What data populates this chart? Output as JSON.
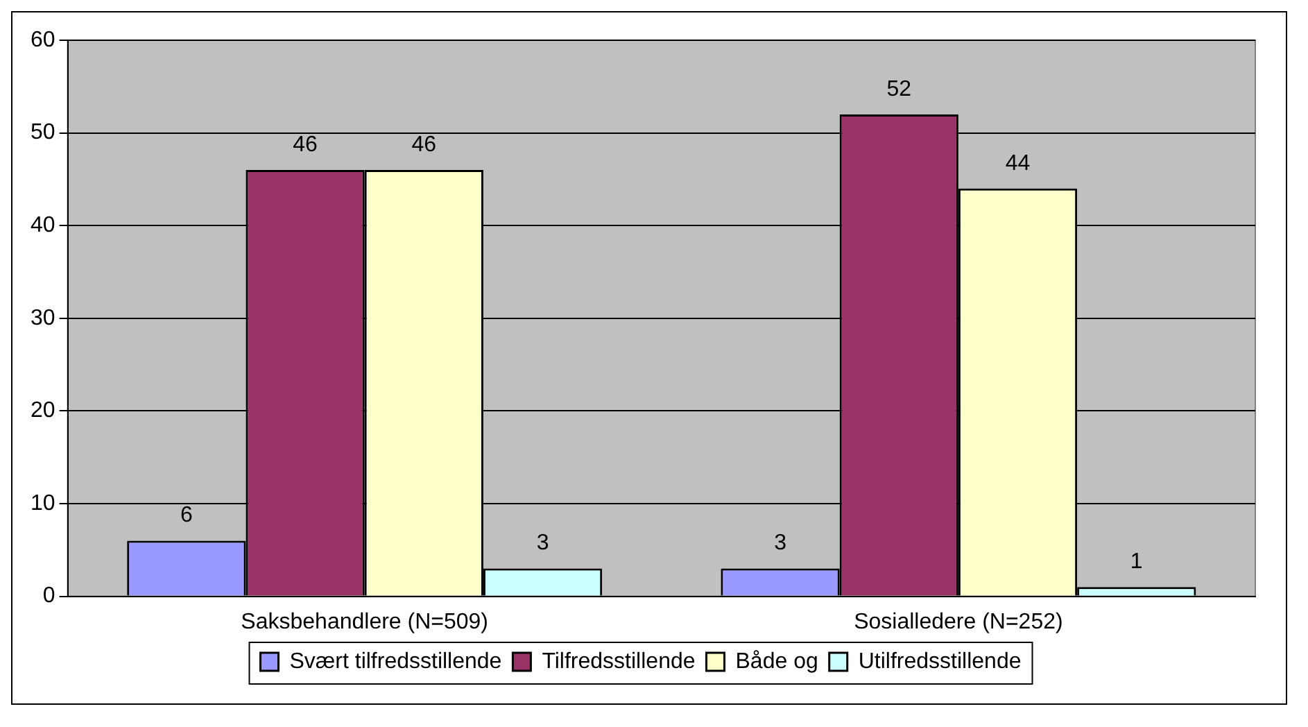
{
  "chart_data": {
    "type": "bar",
    "categories": [
      "Saksbehandlere (N=509)",
      "Sosialledere (N=252)"
    ],
    "series": [
      {
        "name": "Svært tilfredsstillende",
        "color": "#9999ff",
        "values": [
          6,
          3
        ]
      },
      {
        "name": "Tilfredsstillende",
        "color": "#993366",
        "values": [
          46,
          52
        ]
      },
      {
        "name": "Både og",
        "color": "#ffffcc",
        "values": [
          46,
          44
        ]
      },
      {
        "name": "Utilfredsstillende",
        "color": "#ccffff",
        "values": [
          3,
          1
        ]
      }
    ],
    "ylim": [
      0,
      60
    ],
    "yticks": [
      0,
      10,
      20,
      30,
      40,
      50,
      60
    ],
    "grid": "y",
    "legend": "bottom",
    "data_labels": true
  }
}
